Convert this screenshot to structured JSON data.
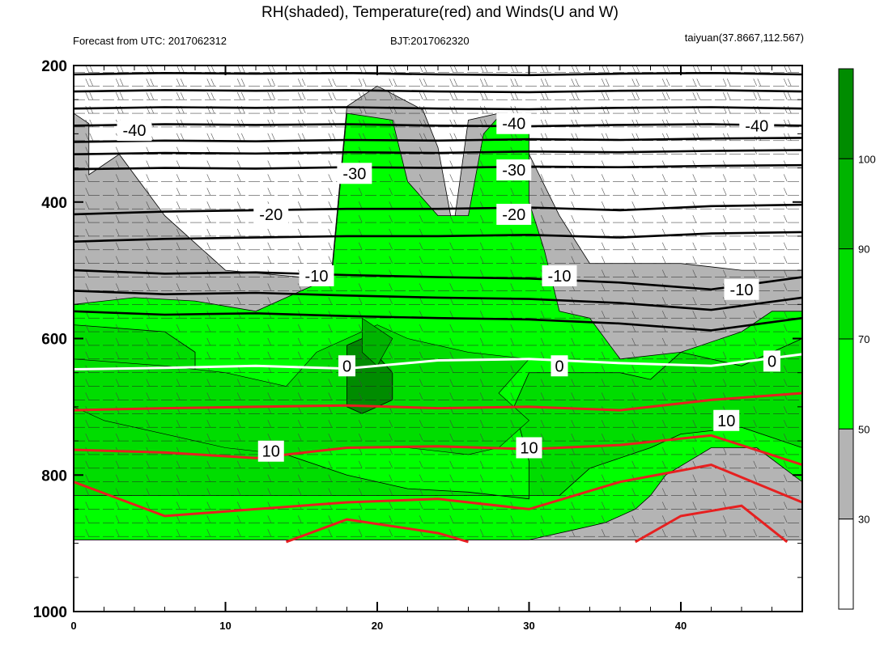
{
  "header": {
    "title": "RH(shaded), Temperature(red) and Winds(U and W)",
    "left": "Forecast from UTC: 2017062312",
    "center": "BJT:2017062320",
    "right": "taiyuan(37.8667,112.567)"
  },
  "chart_data": {
    "type": "heatmap",
    "title": "RH(shaded), Temperature(red) and Winds(U and W)",
    "xlim": [
      0,
      48
    ],
    "ylim": [
      200,
      1000
    ],
    "y_inverted": true,
    "x_ticks": [
      "0",
      "10",
      "20",
      "30",
      "40"
    ],
    "x_tick_values": [
      0,
      10,
      20,
      30,
      40
    ],
    "y_ticks": [
      "200",
      "400",
      "600",
      "800",
      "1000"
    ],
    "y_tick_values": [
      200,
      400,
      600,
      800,
      1000
    ],
    "colorbar": {
      "levels": [
        30,
        50,
        70,
        90,
        100
      ],
      "labels": [
        "30",
        "50",
        "70",
        "90",
        "100"
      ],
      "colors": [
        "#ffffff",
        "#b4b4b4",
        "#00ff00",
        "#00dd00",
        "#00b400",
        "#008c00"
      ]
    },
    "temperature_contours": [
      {
        "label": "-40",
        "color": "#000000",
        "y": [
          288,
          286,
          287,
          286,
          288,
          289,
          287,
          286,
          288
        ]
      },
      {
        "label": "-30",
        "color": "#000000",
        "y": [
          352,
          350,
          351,
          349,
          350,
          348,
          349,
          347,
          346
        ]
      },
      {
        "label": "-20",
        "color": "#000000",
        "y": [
          418,
          414,
          412,
          410,
          410,
          408,
          412,
          406,
          404
        ]
      },
      {
        "label": "-10",
        "color": "#000000",
        "y": [
          500,
          505,
          503,
          507,
          510,
          512,
          518,
          528,
          510
        ]
      },
      {
        "label": "0",
        "color": "#ffffff",
        "y": [
          645,
          643,
          640,
          644,
          632,
          630,
          636,
          640,
          623
        ]
      },
      {
        "label": "10",
        "color": "#e62020",
        "y": [
          763,
          767,
          775,
          760,
          758,
          762,
          756,
          742,
          785
        ]
      }
    ],
    "label_positions": [
      {
        "text": "-40",
        "x": 4,
        "p": 295
      },
      {
        "text": "-40",
        "x": 29,
        "p": 285
      },
      {
        "text": "-40",
        "x": 45,
        "p": 288
      },
      {
        "text": "-30",
        "x": 18.5,
        "p": 358
      },
      {
        "text": "-30",
        "x": 29,
        "p": 353
      },
      {
        "text": "-20",
        "x": 13,
        "p": 418
      },
      {
        "text": "-20",
        "x": 29,
        "p": 418
      },
      {
        "text": "-10",
        "x": 16,
        "p": 508
      },
      {
        "text": "-10",
        "x": 32,
        "p": 508
      },
      {
        "text": "-10",
        "x": 44,
        "p": 528
      },
      {
        "text": "0",
        "x": 18,
        "p": 640
      },
      {
        "text": "0",
        "x": 32,
        "p": 640
      },
      {
        "text": "0",
        "x": 46,
        "p": 633
      },
      {
        "text": "10",
        "x": 13,
        "p": 765
      },
      {
        "text": "10",
        "x": 30,
        "p": 760
      },
      {
        "text": "10",
        "x": 43,
        "p": 720
      }
    ],
    "grid": false,
    "legend": "colorbar right"
  }
}
